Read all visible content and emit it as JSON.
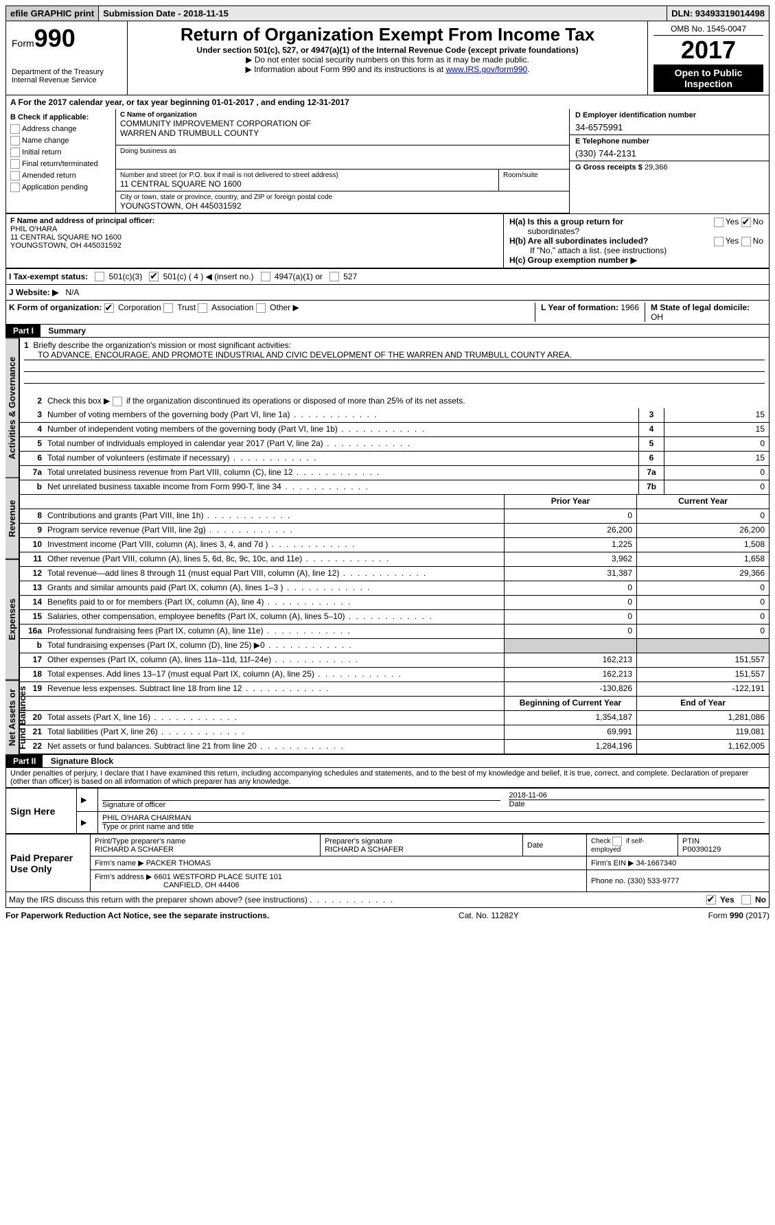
{
  "top_bar": {
    "efile_btn": "efile GRAPHIC print",
    "sub_date_label": "Submission Date - ",
    "sub_date": "2018-11-15",
    "dln_label": "DLN: ",
    "dln": "93493319014498"
  },
  "header": {
    "form_label": "Form",
    "form_num": "990",
    "dept1": "Department of the Treasury",
    "dept2": "Internal Revenue Service",
    "title": "Return of Organization Exempt From Income Tax",
    "subtitle": "Under section 501(c), 527, or 4947(a)(1) of the Internal Revenue Code (except private foundations)",
    "instr1": "▶ Do not enter social security numbers on this form as it may be made public.",
    "instr2_pre": "▶ Information about Form 990 and its instructions is at ",
    "instr2_link": "www.IRS.gov/form990",
    "omb": "OMB No. 1545-0047",
    "year": "2017",
    "open1": "Open to Public",
    "open2": "Inspection"
  },
  "sec_a": "A  For the 2017 calendar year, or tax year beginning 01-01-2017   , and ending 12-31-2017",
  "sec_b": {
    "title": "B Check if applicable:",
    "items": [
      "Address change",
      "Name change",
      "Initial return",
      "Final return/terminated",
      "Amended return",
      "Application pending"
    ]
  },
  "sec_c": {
    "name_label": "C Name of organization",
    "name1": "COMMUNITY IMPROVEMENT CORPORATION OF",
    "name2": "WARREN AND TRUMBULL COUNTY",
    "dba_label": "Doing business as",
    "addr_label": "Number and street (or P.O. box if mail is not delivered to street address)",
    "room_label": "Room/suite",
    "addr": "11 CENTRAL SQUARE NO 1600",
    "city_label": "City or town, state or province, country, and ZIP or foreign postal code",
    "city": "YOUNGSTOWN, OH  445031592"
  },
  "sec_d": {
    "ein_label": "D Employer identification number",
    "ein": "34-6575991",
    "tel_label": "E Telephone number",
    "tel": "(330) 744-2131",
    "gross_label": "G Gross receipts $ ",
    "gross": "29,366"
  },
  "sec_f": {
    "label": "F  Name and address of principal officer:",
    "l1": "PHIL O'HARA",
    "l2": "11 CENTRAL SQUARE NO 1600",
    "l3": "YOUNGSTOWN, OH  445031592"
  },
  "sec_h": {
    "ha": "H(a)  Is this a group return for",
    "ha2": "subordinates?",
    "hb": "H(b)  Are all subordinates included?",
    "hb_note": "If \"No,\" attach a list. (see instructions)",
    "hc": "H(c)  Group exemption number ▶",
    "yes": "Yes",
    "no": "No"
  },
  "sec_i": {
    "label": "I  Tax-exempt status:",
    "o1": "501(c)(3)",
    "o2": "501(c) ( 4 ) ◀ (insert no.)",
    "o3": "4947(a)(1) or",
    "o4": "527"
  },
  "sec_j": {
    "label": "J  Website: ▶",
    "val": "N/A"
  },
  "sec_k": {
    "label": "K Form of organization:",
    "o1": "Corporation",
    "o2": "Trust",
    "o3": "Association",
    "o4": "Other ▶"
  },
  "sec_l": {
    "label": "L Year of formation: ",
    "val": "1966"
  },
  "sec_m": {
    "label": "M State of legal domicile:",
    "val": "OH"
  },
  "part1": {
    "hdr": "Part I",
    "title": "Summary",
    "tab_ag": "Activities & Governance",
    "tab_rev": "Revenue",
    "tab_exp": "Expenses",
    "tab_net": "Net Assets or Fund Balances",
    "l1_label": "Briefly describe the organization's mission or most significant activities:",
    "l1_text": "TO ADVANCE, ENCOURAGE, AND PROMOTE INDUSTRIAL AND CIVIC DEVELOPMENT OF THE WARREN AND TRUMBULL COUNTY AREA.",
    "l2": "Check this box ▶      if the organization discontinued its operations or disposed of more than 25% of its net assets.",
    "lines_a": [
      {
        "n": "3",
        "t": "Number of voting members of the governing body (Part VI, line 1a)",
        "bn": "3",
        "v": "15"
      },
      {
        "n": "4",
        "t": "Number of independent voting members of the governing body (Part VI, line 1b)",
        "bn": "4",
        "v": "15"
      },
      {
        "n": "5",
        "t": "Total number of individuals employed in calendar year 2017 (Part V, line 2a)",
        "bn": "5",
        "v": "0"
      },
      {
        "n": "6",
        "t": "Total number of volunteers (estimate if necessary)",
        "bn": "6",
        "v": "15"
      },
      {
        "n": "7a",
        "t": "Total unrelated business revenue from Part VIII, column (C), line 12",
        "bn": "7a",
        "v": "0"
      },
      {
        "n": "b",
        "t": "Net unrelated business taxable income from Form 990-T, line 34",
        "bn": "7b",
        "v": "0"
      }
    ],
    "col_prior": "Prior Year",
    "col_curr": "Current Year",
    "lines_rev": [
      {
        "n": "8",
        "t": "Contributions and grants (Part VIII, line 1h)",
        "p": "0",
        "c": "0"
      },
      {
        "n": "9",
        "t": "Program service revenue (Part VIII, line 2g)",
        "p": "26,200",
        "c": "26,200"
      },
      {
        "n": "10",
        "t": "Investment income (Part VIII, column (A), lines 3, 4, and 7d )",
        "p": "1,225",
        "c": "1,508"
      },
      {
        "n": "11",
        "t": "Other revenue (Part VIII, column (A), lines 5, 6d, 8c, 9c, 10c, and 11e)",
        "p": "3,962",
        "c": "1,658"
      },
      {
        "n": "12",
        "t": "Total revenue—add lines 8 through 11 (must equal Part VIII, column (A), line 12)",
        "p": "31,387",
        "c": "29,366"
      }
    ],
    "lines_exp": [
      {
        "n": "13",
        "t": "Grants and similar amounts paid (Part IX, column (A), lines 1–3 )",
        "p": "0",
        "c": "0"
      },
      {
        "n": "14",
        "t": "Benefits paid to or for members (Part IX, column (A), line 4)",
        "p": "0",
        "c": "0"
      },
      {
        "n": "15",
        "t": "Salaries, other compensation, employee benefits (Part IX, column (A), lines 5–10)",
        "p": "0",
        "c": "0"
      },
      {
        "n": "16a",
        "t": "Professional fundraising fees (Part IX, column (A), line 11e)",
        "p": "0",
        "c": "0"
      },
      {
        "n": "b",
        "t": "Total fundraising expenses (Part IX, column (D), line 25) ▶0",
        "p": "",
        "c": "",
        "shaded": true
      },
      {
        "n": "17",
        "t": "Other expenses (Part IX, column (A), lines 11a–11d, 11f–24e)",
        "p": "162,213",
        "c": "151,557"
      },
      {
        "n": "18",
        "t": "Total expenses. Add lines 13–17 (must equal Part IX, column (A), line 25)",
        "p": "162,213",
        "c": "151,557"
      },
      {
        "n": "19",
        "t": "Revenue less expenses. Subtract line 18 from line 12",
        "p": "-130,826",
        "c": "-122,191"
      }
    ],
    "col_beg": "Beginning of Current Year",
    "col_end": "End of Year",
    "lines_net": [
      {
        "n": "20",
        "t": "Total assets (Part X, line 16)",
        "p": "1,354,187",
        "c": "1,281,086"
      },
      {
        "n": "21",
        "t": "Total liabilities (Part X, line 26)",
        "p": "69,991",
        "c": "119,081"
      },
      {
        "n": "22",
        "t": "Net assets or fund balances. Subtract line 21 from line 20",
        "p": "1,284,196",
        "c": "1,162,005"
      }
    ]
  },
  "part2": {
    "hdr": "Part II",
    "title": "Signature Block",
    "perjury": "Under penalties of perjury, I declare that I have examined this return, including accompanying schedules and statements, and to the best of my knowledge and belief, it is true, correct, and complete. Declaration of preparer (other than officer) is based on all information of which preparer has any knowledge.",
    "sign_here": "Sign Here",
    "sig_officer": "Signature of officer",
    "sig_date_lbl": "Date",
    "sig_date": "2018-11-06",
    "sig_name": "PHIL O'HARA CHAIRMAN",
    "sig_name_lbl": "Type or print name and title",
    "paid": "Paid Preparer Use Only",
    "prep_name_lbl": "Print/Type preparer's name",
    "prep_name": "RICHARD A SCHAFER",
    "prep_sig_lbl": "Preparer's signature",
    "prep_sig": "RICHARD A SCHAFER",
    "date_lbl": "Date",
    "self_emp": "Check       if self-employed",
    "ptin_lbl": "PTIN",
    "ptin": "P00390129",
    "firm_name_lbl": "Firm's name    ▶ ",
    "firm_name": "PACKER THOMAS",
    "firm_ein_lbl": "Firm's EIN ▶ ",
    "firm_ein": "34-1667340",
    "firm_addr_lbl": "Firm's address ▶ ",
    "firm_addr1": "6601 WESTFORD PLACE SUITE 101",
    "firm_addr2": "CANFIELD, OH  44406",
    "phone_lbl": "Phone no. ",
    "phone": "(330) 533-9777",
    "discuss": "May the IRS discuss this return with the preparer shown above? (see instructions)",
    "yes": "Yes",
    "no": "No"
  },
  "footer": {
    "left": "For Paperwork Reduction Act Notice, see the separate instructions.",
    "mid": "Cat. No. 11282Y",
    "right": "Form 990 (2017)"
  }
}
